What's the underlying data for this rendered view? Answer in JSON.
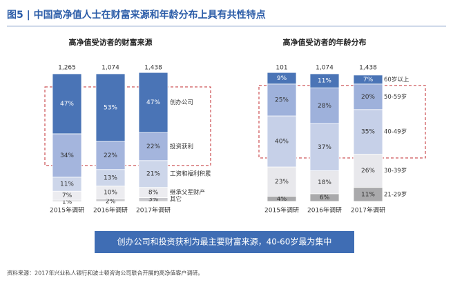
{
  "title": "图5 | 中国高净值人士在财富来源和年龄分布上具有共性特点",
  "summary": "创办公司和投资获利为最主要财富来源，40-60岁最为集中",
  "source": "资料来源：2017年兴业私人银行和波士顿咨询公司联合开展的高净值客户调研。",
  "chart_data": [
    {
      "type": "stacked-bar",
      "title": "高净值受访者的财富来源",
      "categories": [
        "2015年调研",
        "2016年调研",
        "2017年调研"
      ],
      "sample_sizes": {
        "values": [
          1265,
          1074,
          1438
        ],
        "value_labels": [
          "1,265",
          "1,074",
          "1,438"
        ]
      },
      "ylim": [
        0,
        100
      ],
      "series": [
        {
          "name": "其它",
          "color": "#c9c9cd",
          "values": [
            1,
            2,
            3
          ],
          "value_labels": [
            "1%",
            "2%",
            "3%"
          ]
        },
        {
          "name": "继承父辈财产",
          "color": "#ececf0",
          "values": [
            7,
            10,
            8
          ],
          "value_labels": [
            "7%",
            "10%",
            "8%"
          ]
        },
        {
          "name": "工资和福利积累",
          "color": "#cdd6ea",
          "values": [
            11,
            13,
            21
          ],
          "value_labels": [
            "11%",
            "13%",
            "21%"
          ]
        },
        {
          "name": "投资获利",
          "color": "#a4b5dd",
          "values": [
            34,
            22,
            22
          ],
          "value_labels": [
            "34%",
            "22%",
            "22%"
          ]
        },
        {
          "name": "创办公司",
          "color": "#4a74b6",
          "values": [
            47,
            53,
            47
          ],
          "value_labels": [
            "47%",
            "53%",
            "47%"
          ]
        }
      ]
    },
    {
      "type": "stacked-bar",
      "title": "高净值受访者的年龄分布",
      "categories": [
        "2015年调研",
        "2016年调研",
        "2017年调研"
      ],
      "sample_sizes": {
        "values": [
          101,
          1074,
          1438
        ],
        "value_labels": [
          "101",
          "1,074",
          "1,438"
        ]
      },
      "ylim": [
        0,
        100
      ],
      "series": [
        {
          "name": "21-29岁",
          "color": "#a9a9ab",
          "values": [
            4,
            6,
            11
          ],
          "value_labels": [
            "4%",
            "6%",
            "11%"
          ]
        },
        {
          "name": "30-39岁",
          "color": "#e8e8ec",
          "values": [
            23,
            18,
            26
          ],
          "value_labels": [
            "23%",
            "18%",
            "26%"
          ]
        },
        {
          "name": "40-49岁",
          "color": "#c6d0e8",
          "values": [
            40,
            37,
            35
          ],
          "value_labels": [
            "40%",
            "37%",
            "35%"
          ]
        },
        {
          "name": "50-59岁",
          "color": "#9eb1db",
          "values": [
            25,
            28,
            20
          ],
          "value_labels": [
            "25%",
            "28%",
            "20%"
          ]
        },
        {
          "name": "60岁以上",
          "color": "#4a74b6",
          "values": [
            9,
            11,
            7
          ],
          "value_labels": [
            "9%",
            "11%",
            "7%"
          ]
        }
      ]
    }
  ]
}
